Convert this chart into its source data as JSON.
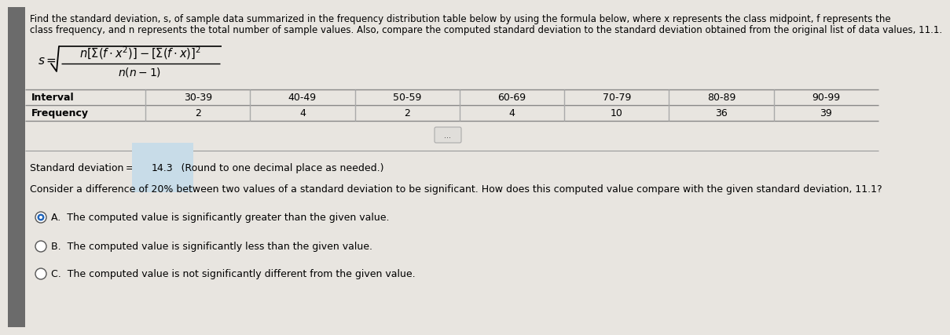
{
  "title_text": "Find the standard deviation, s, of sample data summarized in the frequency distribution table below by using the formula below, where x represents the class midpoint, f represents the",
  "title_text2": "class frequency, and n represents the total number of sample values. Also, compare the computed standard deviation to the standard deviation obtained from the original list of data values, 11.1.",
  "intervals": [
    "30-39",
    "40-49",
    "50-59",
    "60-69",
    "70-79",
    "80-89",
    "90-99"
  ],
  "frequencies": [
    "2",
    "4",
    "2",
    "4",
    "10",
    "36",
    "39"
  ],
  "std_dev_result": "14.3",
  "given_std_dev": "11.1",
  "bg_color": "#e8e5e0",
  "separator_color": "#999999",
  "table_line_color": "#888888",
  "vert_line_color": "#aaaaaa",
  "options": [
    "A.  The computed value is significantly greater than the given value.",
    "B.  The computed value is significantly less than the given value.",
    "C.  The computed value is not significantly different from the given value."
  ],
  "selected_option": 0,
  "formula_fontsize": 11,
  "text_fontsize": 8.5,
  "table_fontsize": 9,
  "answer_fontsize": 9
}
